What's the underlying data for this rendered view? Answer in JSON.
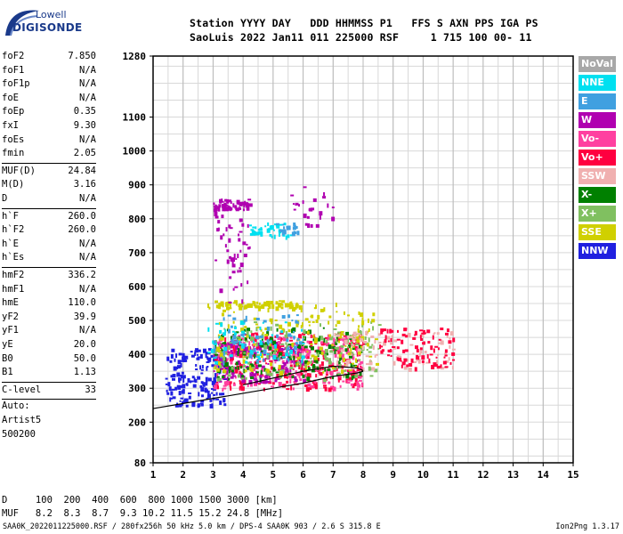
{
  "logo": {
    "brand": "Lowell",
    "product": "DIGISONDE"
  },
  "header": {
    "line1": "Station YYYY DAY   DDD HHMMSS P1   FFS S AXN PPS IGA PS",
    "line2": "SaoLuis 2022 Jan11 011 225000 RSF     1 715 100 00- 11"
  },
  "params_top": [
    {
      "name": "foF2",
      "value": "7.850"
    },
    {
      "name": "foF1",
      "value": "N/A"
    },
    {
      "name": "foF1p",
      "value": "N/A"
    },
    {
      "name": "foE",
      "value": "N/A"
    },
    {
      "name": "foEp",
      "value": "0.35"
    },
    {
      "name": "fxI",
      "value": "9.30"
    },
    {
      "name": "foEs",
      "value": "N/A"
    },
    {
      "name": "fmin",
      "value": "2.05"
    }
  ],
  "params_muf": [
    {
      "name": "MUF(D)",
      "value": "24.84"
    },
    {
      "name": "M(D)",
      "value": "3.16"
    },
    {
      "name": "D",
      "value": "N/A"
    }
  ],
  "params_heights": [
    {
      "name": "h`F",
      "value": "260.0"
    },
    {
      "name": "h`F2",
      "value": "260.0"
    },
    {
      "name": "h`E",
      "value": "N/A"
    },
    {
      "name": "h`Es",
      "value": "N/A"
    }
  ],
  "params_profile": [
    {
      "name": "hmF2",
      "value": "336.2"
    },
    {
      "name": "hmF1",
      "value": "N/A"
    },
    {
      "name": "hmE",
      "value": "110.0"
    },
    {
      "name": "yF2",
      "value": "39.9"
    },
    {
      "name": "yF1",
      "value": "N/A"
    },
    {
      "name": "yE",
      "value": "20.0"
    },
    {
      "name": "B0",
      "value": "50.0"
    },
    {
      "name": "B1",
      "value": "1.13"
    }
  ],
  "c_level": {
    "name": "C-level",
    "value": "33"
  },
  "autoscaling": {
    "line1": "Auto:",
    "line2": "Artist5",
    "line3": "500200"
  },
  "legend": [
    {
      "label": "NoVal",
      "color": "#a8a8a8"
    },
    {
      "label": "NNE",
      "color": "#00e0f0"
    },
    {
      "label": "E",
      "color": "#40a0e0"
    },
    {
      "label": "W",
      "color": "#b000b0"
    },
    {
      "label": "Vo-",
      "color": "#ff40a0"
    },
    {
      "label": "Vo+",
      "color": "#ff0040"
    },
    {
      "label": "SSW",
      "color": "#f0b0b0"
    },
    {
      "label": "X-",
      "color": "#008000"
    },
    {
      "label": "X+",
      "color": "#80c060"
    },
    {
      "label": "SSE",
      "color": "#d0d000"
    },
    {
      "label": "NNW",
      "color": "#2020e0"
    }
  ],
  "muf_table": {
    "distance_line": "D     100  200  400  600  800 1000 1500 3000 [km]",
    "muf_line": "MUF   8.2  8.3  8.7  9.3 10.2 11.5 15.2 24.8 [MHz]"
  },
  "footer": {
    "left": "SAA0K_2022011225000.RSF / 280fx256h 50 kHz 5.0 km / DPS-4 SAA0K 903 / 2.6 S 315.8 E",
    "right": "Ion2Png 1.3.17"
  },
  "chart_data": {
    "type": "scatter",
    "xlim": [
      1,
      15
    ],
    "ylim": [
      80,
      1280
    ],
    "x_ticks": [
      1,
      2,
      3,
      4,
      5,
      6,
      7,
      8,
      9,
      10,
      11,
      12,
      13,
      14,
      15
    ],
    "y_ticks": [
      80,
      200,
      300,
      400,
      500,
      600,
      700,
      800,
      900,
      1000,
      1100,
      1280
    ],
    "grid": true,
    "legend_position": "right",
    "trace_lower": [
      [
        1,
        240
      ],
      [
        2,
        255
      ],
      [
        3,
        270
      ],
      [
        4,
        285
      ],
      [
        5,
        300
      ],
      [
        6,
        315
      ],
      [
        7,
        335
      ],
      [
        7.8,
        345
      ],
      [
        8,
        350
      ]
    ],
    "trace_upper": [
      [
        4,
        310
      ],
      [
        5,
        330
      ],
      [
        6,
        350
      ],
      [
        7,
        365
      ],
      [
        7.8,
        360
      ],
      [
        8,
        352
      ]
    ],
    "echo_clusters": [
      {
        "channel": "NNW",
        "x": [
          1.4,
          3.4
        ],
        "y": [
          250,
          420
        ],
        "n": 180
      },
      {
        "channel": "Vo+",
        "x": [
          3,
          8
        ],
        "y": [
          300,
          470
        ],
        "n": 320
      },
      {
        "channel": "Vo-",
        "x": [
          3,
          8
        ],
        "y": [
          300,
          460
        ],
        "n": 220
      },
      {
        "channel": "W",
        "x": [
          3,
          6
        ],
        "y": [
          320,
          440
        ],
        "n": 150
      },
      {
        "channel": "X-",
        "x": [
          3,
          8
        ],
        "y": [
          330,
          480
        ],
        "n": 160
      },
      {
        "channel": "X+",
        "x": [
          3,
          8.5
        ],
        "y": [
          330,
          500
        ],
        "n": 140
      },
      {
        "channel": "SSE",
        "x": [
          3,
          8.5
        ],
        "y": [
          350,
          560
        ],
        "n": 160
      },
      {
        "channel": "NNE",
        "x": [
          2.8,
          6
        ],
        "y": [
          380,
          500
        ],
        "n": 60
      },
      {
        "channel": "E",
        "x": [
          3,
          6
        ],
        "y": [
          380,
          520
        ],
        "n": 60
      },
      {
        "channel": "SSW",
        "x": [
          7,
          11
        ],
        "y": [
          360,
          470
        ],
        "n": 90
      },
      {
        "channel": "Vo+",
        "x": [
          8.5,
          11
        ],
        "y": [
          360,
          480
        ],
        "n": 90
      },
      {
        "channel": "W",
        "x": [
          3,
          4.2
        ],
        "y": [
          830,
          860
        ],
        "n": 50
      },
      {
        "channel": "NNE",
        "x": [
          4.2,
          5.6
        ],
        "y": [
          750,
          790
        ],
        "n": 40
      },
      {
        "channel": "E",
        "x": [
          5,
          5.8
        ],
        "y": [
          760,
          790
        ],
        "n": 20
      },
      {
        "channel": "W",
        "x": [
          5.5,
          7
        ],
        "y": [
          780,
          900
        ],
        "n": 25
      },
      {
        "channel": "SSE",
        "x": [
          2.8,
          5.8
        ],
        "y": [
          540,
          560
        ],
        "n": 80
      },
      {
        "channel": "W",
        "x": [
          3,
          4.2
        ],
        "y": [
          550,
          850
        ],
        "n": 60
      }
    ]
  }
}
